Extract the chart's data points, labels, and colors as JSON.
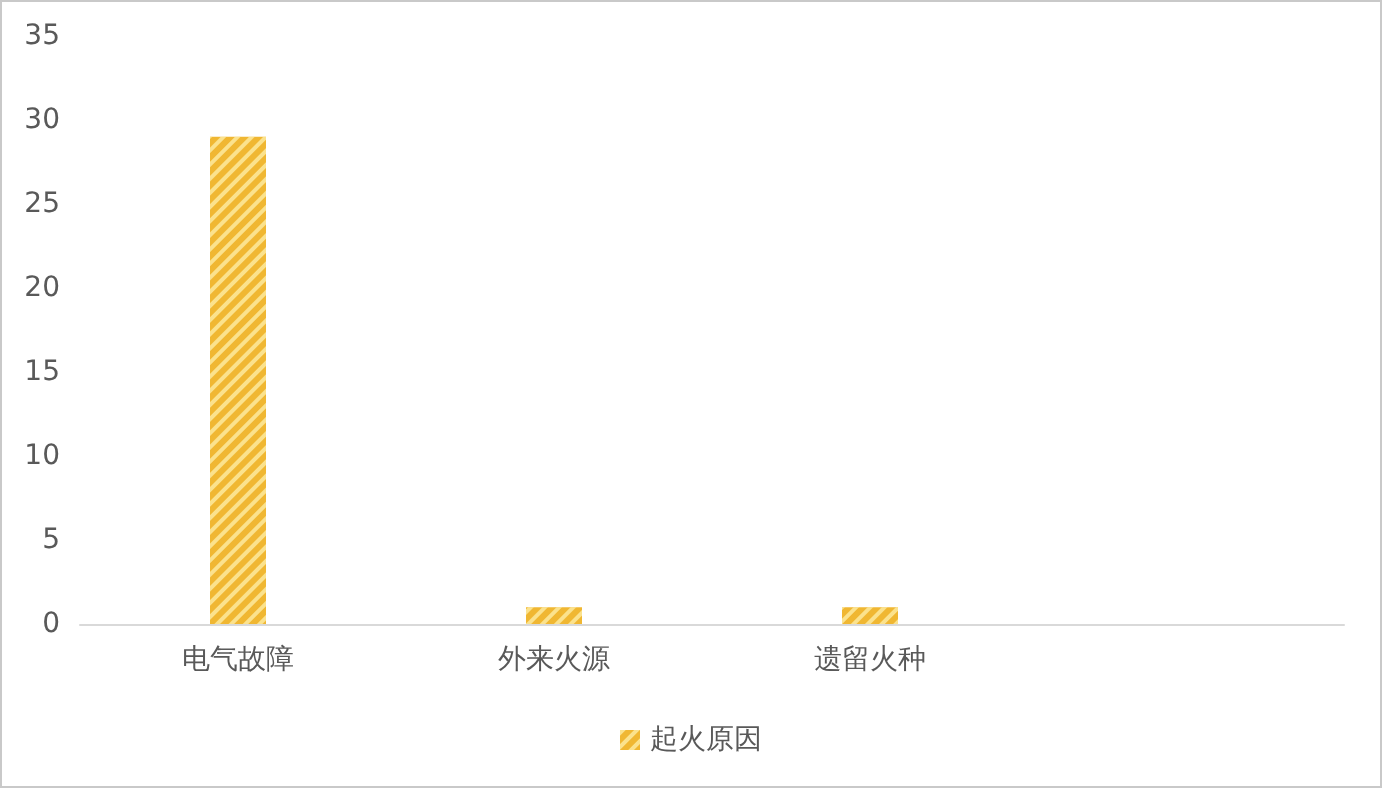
{
  "chart_data": {
    "type": "bar",
    "categories": [
      "电气故障",
      "外来火源",
      "遗留火种",
      null
    ],
    "series": [
      {
        "name": "起火原因",
        "color": "#f0b732",
        "values": [
          29,
          1,
          1,
          null
        ]
      }
    ],
    "ylim": [
      0,
      35
    ],
    "yticks": [
      0,
      5,
      10,
      15,
      20,
      25,
      30,
      35
    ],
    "legend": "bottom"
  }
}
